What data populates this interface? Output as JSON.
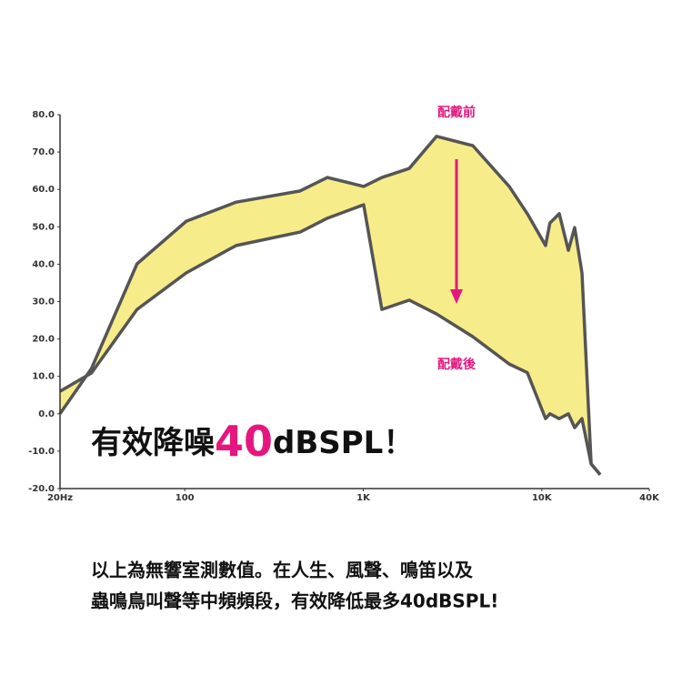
{
  "chart_data": {
    "type": "line",
    "x": [
      20,
      30,
      54,
      102,
      194,
      443,
      629,
      1005,
      1271,
      1808,
      2571,
      4110,
      6570,
      8300,
      10500,
      11100,
      12530,
      14090,
      15280,
      16790,
      18900,
      21240
    ],
    "series": [
      {
        "color": "#555555",
        "values": [
          0,
          12.1,
          40.1,
          51.5,
          56.6,
          59.6,
          63.2,
          60.8,
          63.2,
          65.6,
          74.2,
          71.7,
          60.8,
          53.5,
          45,
          51,
          53.5,
          43.7,
          49.8,
          37.7,
          -13.4,
          -16.3
        ]
      },
      {
        "color": "#555555",
        "values": [
          6,
          10.9,
          27.9,
          37.7,
          45,
          48.6,
          52.3,
          55.9,
          27.9,
          30.4,
          26.7,
          20.6,
          13.3,
          11,
          -1.3,
          0,
          -1.3,
          0,
          -3.7,
          -1.3,
          -13.4,
          -16.3
        ]
      }
    ],
    "fill_between": "#f7ec8a",
    "log_x": true,
    "xlim": [
      20,
      40000
    ],
    "xticks": [
      {
        "value": 20,
        "label": "20Hz"
      },
      100,
      {
        "value": 1000,
        "label": "1K"
      },
      {
        "value": 10000,
        "label": "10K"
      },
      {
        "value": 40000,
        "label": "40K"
      }
    ],
    "ylim": [
      -20,
      80
    ],
    "yticks": [
      {
        "value": 80,
        "label": "80.0"
      },
      {
        "value": 70,
        "label": "70.0"
      },
      {
        "value": 60,
        "label": "60.0"
      },
      {
        "value": 50,
        "label": "50.0"
      },
      {
        "value": 40,
        "label": "40.0"
      },
      {
        "value": 30,
        "label": "30.0"
      },
      {
        "value": 20,
        "label": "20.0"
      },
      {
        "value": 10,
        "label": "10.0"
      },
      {
        "value": 0,
        "label": "0.0"
      },
      {
        "value": -10,
        "label": "-10.0"
      },
      {
        "value": -20,
        "label": "-20.0"
      }
    ],
    "annotations": [
      "配戴前",
      "配戴後"
    ]
  },
  "headline": {
    "parts": [
      "有效降噪",
      "40",
      "dBSPL！"
    ]
  },
  "caption": {
    "lines": [
      "以上為無響室測數值。在人生、風聲、鳴笛以及",
      "蟲鳴鳥叫聲等中頻頻段，有效降低最多40dBSPL!"
    ]
  }
}
